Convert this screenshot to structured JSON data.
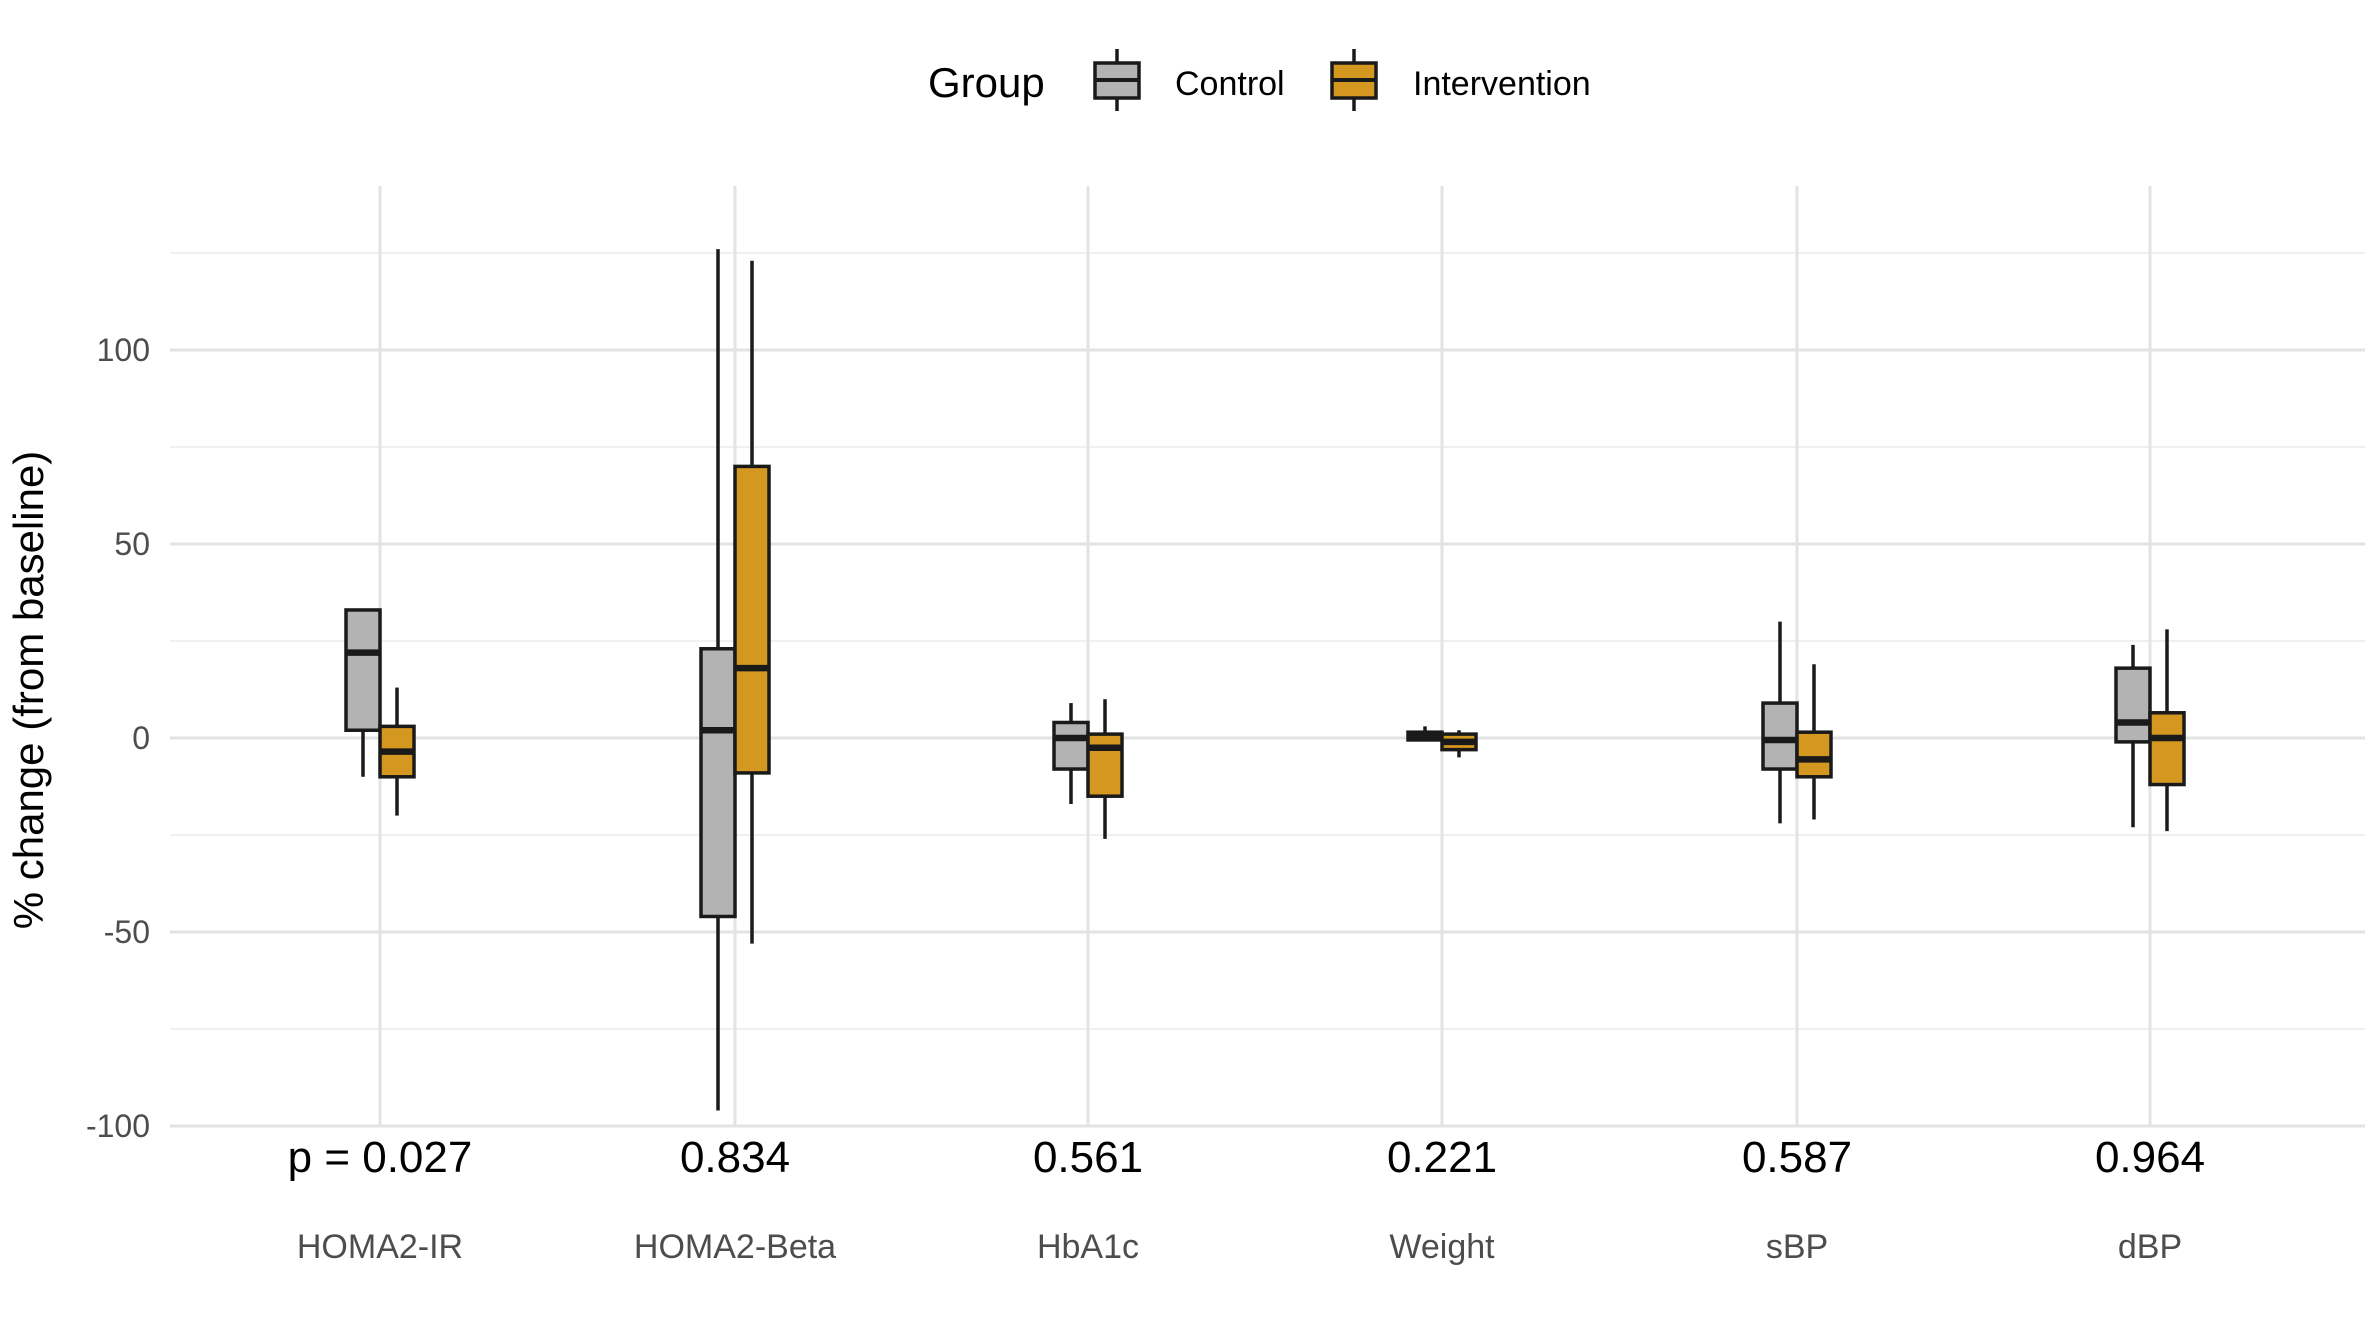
{
  "chart_data": {
    "type": "boxplot",
    "ylabel": "% change (from baseline)",
    "xlabel": "",
    "ylim": [
      -100,
      125
    ],
    "yticks": [
      -100,
      -50,
      0,
      50,
      100
    ],
    "grid": true,
    "legend": {
      "title": "Group",
      "placement": "top",
      "entries": [
        {
          "name": "Control",
          "color": "#b3b3b3"
        },
        {
          "name": "Intervention",
          "color": "#d4971f"
        }
      ]
    },
    "categories": [
      "HOMA2-IR",
      "HOMA2-Beta",
      "HbA1c",
      "Weight",
      "sBP",
      "dBP"
    ],
    "p_values": [
      "p = 0.027",
      "0.834",
      "0.561",
      "0.221",
      "0.587",
      "0.964"
    ],
    "series": [
      {
        "name": "Control",
        "color": "#b3b3b3",
        "boxes": [
          {
            "min": -10,
            "q1": 2,
            "median": 22,
            "q3": 33,
            "max": 33
          },
          {
            "min": -96,
            "q1": -46,
            "median": 2,
            "q3": 23,
            "max": 126
          },
          {
            "min": -17,
            "q1": -8,
            "median": 0,
            "q3": 4,
            "max": 9
          },
          {
            "min": -0.5,
            "q1": -0.5,
            "median": 0.5,
            "q3": 1.5,
            "max": 3
          },
          {
            "min": -22,
            "q1": -8,
            "median": -0.5,
            "q3": 9,
            "max": 30
          },
          {
            "min": -23,
            "q1": -1,
            "median": 4,
            "q3": 18,
            "max": 24
          }
        ]
      },
      {
        "name": "Intervention",
        "color": "#d4971f",
        "boxes": [
          {
            "min": -20,
            "q1": -10,
            "median": -3.5,
            "q3": 3,
            "max": 13
          },
          {
            "min": -53,
            "q1": -9,
            "median": 18,
            "q3": 70,
            "max": 123
          },
          {
            "min": -26,
            "q1": -15,
            "median": -2.5,
            "q3": 1,
            "max": 10
          },
          {
            "min": -5,
            "q1": -3,
            "median": -1,
            "q3": 1,
            "max": 2
          },
          {
            "min": -21,
            "q1": -10,
            "median": -5.5,
            "q3": 1.5,
            "max": 19
          },
          {
            "min": -24,
            "q1": -12,
            "median": 0,
            "q3": 6.5,
            "max": 28
          }
        ]
      }
    ]
  }
}
